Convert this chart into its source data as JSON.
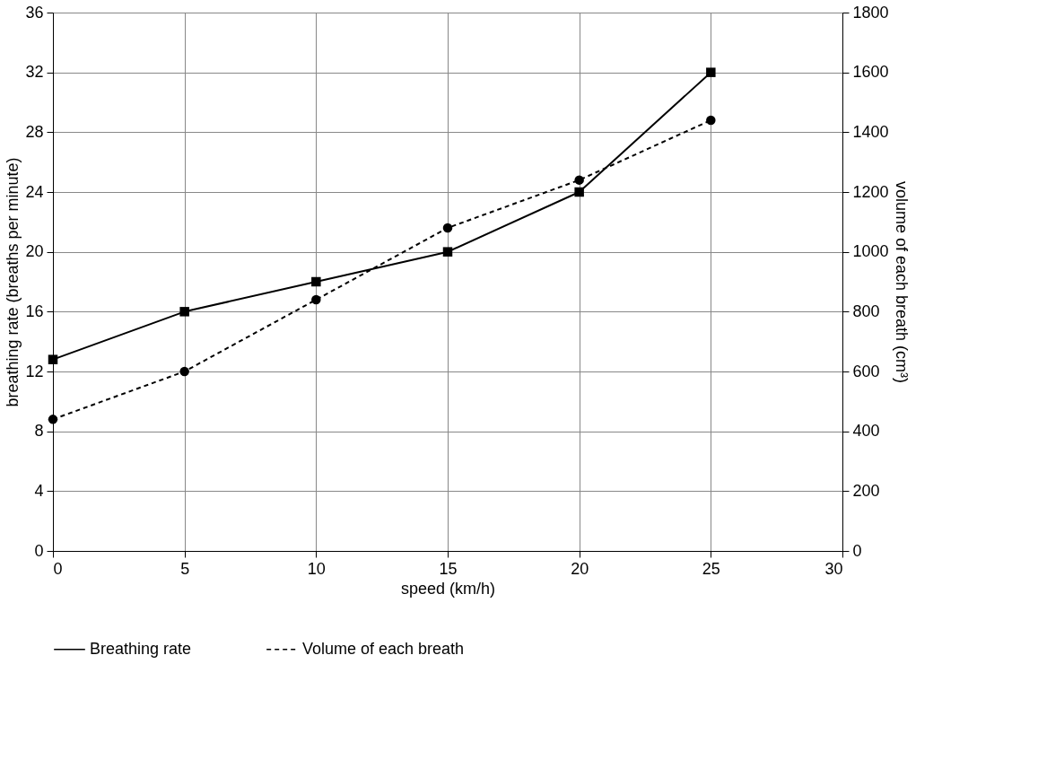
{
  "chart_data": {
    "type": "line",
    "xlabel": "speed (km/h)",
    "ylabel": "breathing rate (breaths per minute)",
    "y2label": "volume of each breath (cm³)",
    "x": [
      0,
      5,
      10,
      15,
      20,
      25
    ],
    "xlim": [
      0,
      30
    ],
    "xticks": [
      0,
      5,
      10,
      15,
      20,
      25,
      30
    ],
    "ylim": [
      0,
      36
    ],
    "yticks": [
      0,
      4,
      8,
      12,
      16,
      20,
      24,
      28,
      32,
      36
    ],
    "y2lim": [
      0,
      1800
    ],
    "y2ticks": [
      0,
      200,
      400,
      600,
      800,
      1000,
      1200,
      1400,
      1600,
      1800
    ],
    "grid": true,
    "legend": "bottom",
    "series": [
      {
        "name": "Breathing rate",
        "color": "#000000",
        "marker": "square",
        "line_style": "solid",
        "values": [
          12.8,
          16,
          18,
          20,
          24,
          32
        ]
      },
      {
        "name": "Volume of each breath",
        "color": "#000000",
        "marker": "circle",
        "line_style": "dashed",
        "axis": "y2",
        "values": [
          440,
          600,
          840,
          1080,
          1240,
          1440
        ]
      }
    ]
  }
}
